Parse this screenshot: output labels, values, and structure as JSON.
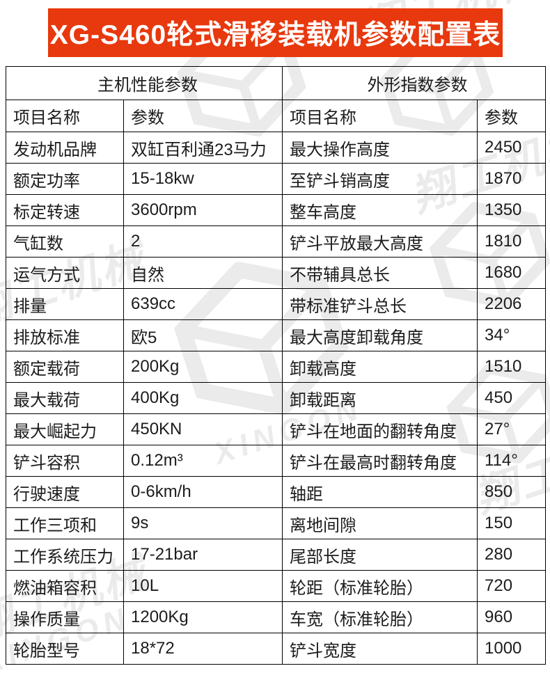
{
  "title": "XG-S460轮式滑移装载机参数配置表",
  "colors": {
    "banner_bg": "#e8380d",
    "banner_text": "#ffffff",
    "border": "#000000",
    "text": "#1c1c1c",
    "watermark": "#ebebeb"
  },
  "watermark": {
    "brand_cn": "翔工机械",
    "brand_en": "XINGON"
  },
  "table": {
    "left_group_header": "主机性能参数",
    "right_group_header": "外形指数参数",
    "col_headers": {
      "name": "项目名称",
      "param": "参数"
    },
    "rows": [
      {
        "l_name": "发动机品牌",
        "l_val": "双缸百利通23马力",
        "r_name": "最大操作高度",
        "r_val": "2450"
      },
      {
        "l_name": "额定功率",
        "l_val": "15-18kw",
        "r_name": "至铲斗销高度",
        "r_val": "1870"
      },
      {
        "l_name": "标定转速",
        "l_val": "3600rpm",
        "r_name": "整车高度",
        "r_val": "1350"
      },
      {
        "l_name": "气缸数",
        "l_val": "2",
        "r_name": "铲斗平放最大高度",
        "r_val": "1810"
      },
      {
        "l_name": "运气方式",
        "l_val": "自然",
        "r_name": "不带辅具总长",
        "r_val": "1680"
      },
      {
        "l_name": "排量",
        "l_val": "639cc",
        "r_name": "带标准铲斗总长",
        "r_val": "2206"
      },
      {
        "l_name": "排放标准",
        "l_val": "欧5",
        "r_name": "最大高度卸载角度",
        "r_val": "34°"
      },
      {
        "l_name": "额定载荷",
        "l_val": "200Kg",
        "r_name": "卸载高度",
        "r_val": "1510"
      },
      {
        "l_name": "最大载荷",
        "l_val": "400Kg",
        "r_name": "卸载距离",
        "r_val": "450"
      },
      {
        "l_name": "最大崛起力",
        "l_val": "450KN",
        "r_name": "铲斗在地面的翻转角度",
        "r_val": "27°"
      },
      {
        "l_name": "铲斗容积",
        "l_val": "0.12m³",
        "r_name": "铲斗在最高时翻转角度",
        "r_val": "114°"
      },
      {
        "l_name": "行驶速度",
        "l_val": "0-6km/h",
        "r_name": "轴距",
        "r_val": "850"
      },
      {
        "l_name": "工作三项和",
        "l_val": "9s",
        "r_name": "离地间隙",
        "r_val": "150"
      },
      {
        "l_name": "工作系统压力",
        "l_val": "17-21bar",
        "r_name": "尾部长度",
        "r_val": "280"
      },
      {
        "l_name": "燃油箱容积",
        "l_val": "10L",
        "r_name": "轮距（标准轮胎）",
        "r_val": "720"
      },
      {
        "l_name": "操作质量",
        "l_val": "1200Kg",
        "r_name": "车宽（标准轮胎）",
        "r_val": "960"
      },
      {
        "l_name": "轮胎型号",
        "l_val": "18*72",
        "r_name": "铲斗宽度",
        "r_val": "1000"
      }
    ]
  }
}
